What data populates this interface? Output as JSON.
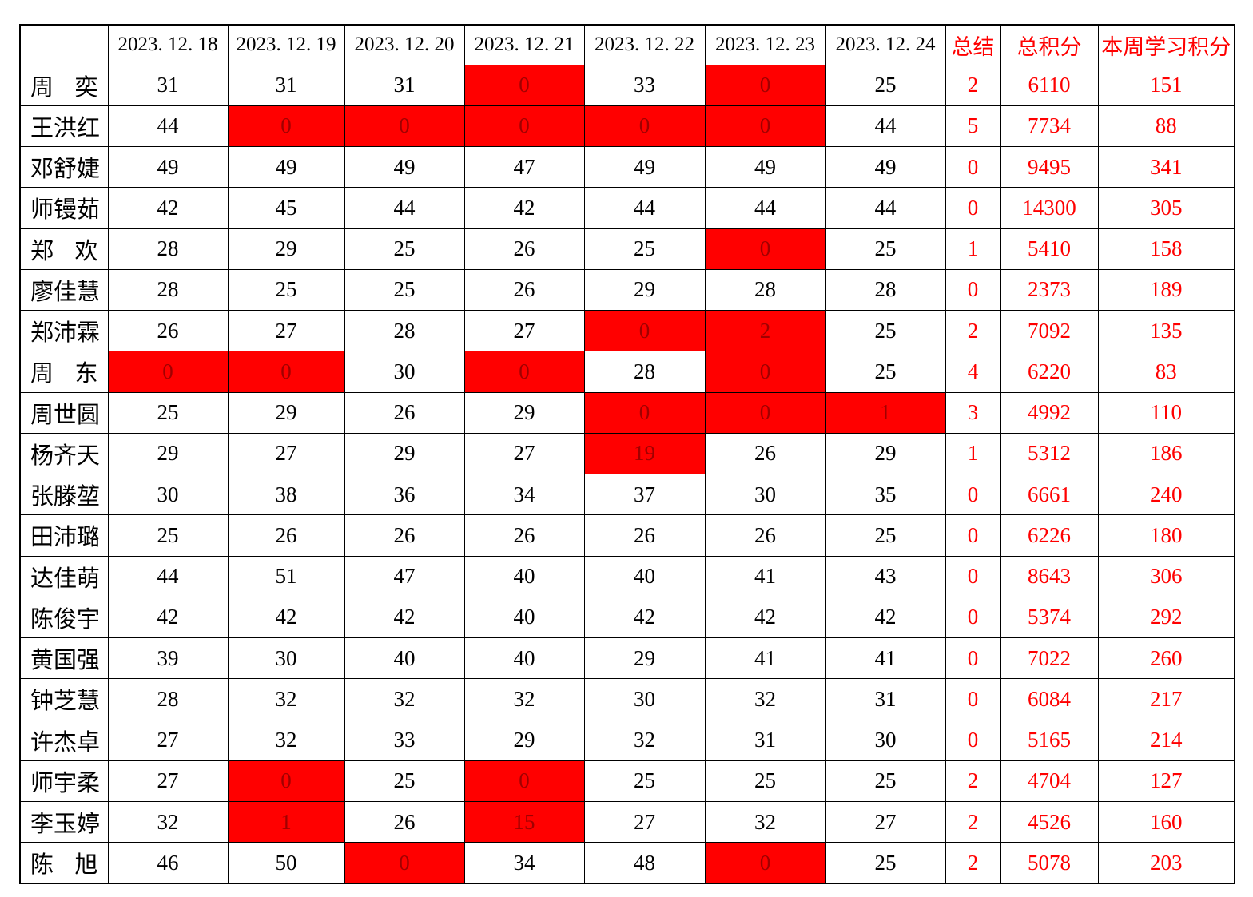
{
  "colors": {
    "grid_line": "#000000",
    "highlight_fill": "#ff0000",
    "highlight_text": "#a00000",
    "accent_text": "#ff0000",
    "normal_text": "#000000",
    "background": "#ffffff"
  },
  "table": {
    "columns": {
      "name_header": "",
      "dates": [
        "2023. 12. 18",
        "2023. 12. 19",
        "2023. 12. 20",
        "2023. 12. 21",
        "2023. 12. 22",
        "2023. 12. 23",
        "2023. 12. 24"
      ],
      "summary": "总结",
      "total": "总积分",
      "week": "本周学习积分"
    },
    "rows": [
      {
        "name": "周奕",
        "days": [
          {
            "v": "31",
            "hl": false
          },
          {
            "v": "31",
            "hl": false
          },
          {
            "v": "31",
            "hl": false
          },
          {
            "v": "0",
            "hl": true
          },
          {
            "v": "33",
            "hl": false
          },
          {
            "v": "0",
            "hl": true
          },
          {
            "v": "25",
            "hl": false
          }
        ],
        "summary": "2",
        "total": "6110",
        "week": "151"
      },
      {
        "name": "王洪红",
        "days": [
          {
            "v": "44",
            "hl": false
          },
          {
            "v": "0",
            "hl": true
          },
          {
            "v": "0",
            "hl": true
          },
          {
            "v": "0",
            "hl": true
          },
          {
            "v": "0",
            "hl": true
          },
          {
            "v": "0",
            "hl": true
          },
          {
            "v": "44",
            "hl": false
          }
        ],
        "summary": "5",
        "total": "7734",
        "week": "88"
      },
      {
        "name": "邓舒婕",
        "days": [
          {
            "v": "49",
            "hl": false
          },
          {
            "v": "49",
            "hl": false
          },
          {
            "v": "49",
            "hl": false
          },
          {
            "v": "47",
            "hl": false
          },
          {
            "v": "49",
            "hl": false
          },
          {
            "v": "49",
            "hl": false
          },
          {
            "v": "49",
            "hl": false
          }
        ],
        "summary": "0",
        "total": "9495",
        "week": "341"
      },
      {
        "name": "师镘茹",
        "days": [
          {
            "v": "42",
            "hl": false
          },
          {
            "v": "45",
            "hl": false
          },
          {
            "v": "44",
            "hl": false
          },
          {
            "v": "42",
            "hl": false
          },
          {
            "v": "44",
            "hl": false
          },
          {
            "v": "44",
            "hl": false
          },
          {
            "v": "44",
            "hl": false
          }
        ],
        "summary": "0",
        "total": "14300",
        "week": "305"
      },
      {
        "name": "郑欢",
        "days": [
          {
            "v": "28",
            "hl": false
          },
          {
            "v": "29",
            "hl": false
          },
          {
            "v": "25",
            "hl": false
          },
          {
            "v": "26",
            "hl": false
          },
          {
            "v": "25",
            "hl": false
          },
          {
            "v": "0",
            "hl": true
          },
          {
            "v": "25",
            "hl": false
          }
        ],
        "summary": "1",
        "total": "5410",
        "week": "158"
      },
      {
        "name": "廖佳慧",
        "days": [
          {
            "v": "28",
            "hl": false
          },
          {
            "v": "25",
            "hl": false
          },
          {
            "v": "25",
            "hl": false
          },
          {
            "v": "26",
            "hl": false
          },
          {
            "v": "29",
            "hl": false
          },
          {
            "v": "28",
            "hl": false
          },
          {
            "v": "28",
            "hl": false
          }
        ],
        "summary": "0",
        "total": "2373",
        "week": "189"
      },
      {
        "name": "郑沛霖",
        "days": [
          {
            "v": "26",
            "hl": false
          },
          {
            "v": "27",
            "hl": false
          },
          {
            "v": "28",
            "hl": false
          },
          {
            "v": "27",
            "hl": false
          },
          {
            "v": "0",
            "hl": true
          },
          {
            "v": "2",
            "hl": true
          },
          {
            "v": "25",
            "hl": false
          }
        ],
        "summary": "2",
        "total": "7092",
        "week": "135"
      },
      {
        "name": "周东",
        "days": [
          {
            "v": "0",
            "hl": true
          },
          {
            "v": "0",
            "hl": true
          },
          {
            "v": "30",
            "hl": false
          },
          {
            "v": "0",
            "hl": true
          },
          {
            "v": "28",
            "hl": false
          },
          {
            "v": "0",
            "hl": true
          },
          {
            "v": "25",
            "hl": false
          }
        ],
        "summary": "4",
        "total": "6220",
        "week": "83"
      },
      {
        "name": "周世圆",
        "days": [
          {
            "v": "25",
            "hl": false
          },
          {
            "v": "29",
            "hl": false
          },
          {
            "v": "26",
            "hl": false
          },
          {
            "v": "29",
            "hl": false
          },
          {
            "v": "0",
            "hl": true
          },
          {
            "v": "0",
            "hl": true
          },
          {
            "v": "1",
            "hl": true
          }
        ],
        "summary": "3",
        "total": "4992",
        "week": "110"
      },
      {
        "name": "杨齐天",
        "days": [
          {
            "v": "29",
            "hl": false
          },
          {
            "v": "27",
            "hl": false
          },
          {
            "v": "29",
            "hl": false
          },
          {
            "v": "27",
            "hl": false
          },
          {
            "v": "19",
            "hl": true
          },
          {
            "v": "26",
            "hl": false
          },
          {
            "v": "29",
            "hl": false
          }
        ],
        "summary": "1",
        "total": "5312",
        "week": "186"
      },
      {
        "name": "张滕堃",
        "days": [
          {
            "v": "30",
            "hl": false
          },
          {
            "v": "38",
            "hl": false
          },
          {
            "v": "36",
            "hl": false
          },
          {
            "v": "34",
            "hl": false
          },
          {
            "v": "37",
            "hl": false
          },
          {
            "v": "30",
            "hl": false
          },
          {
            "v": "35",
            "hl": false
          }
        ],
        "summary": "0",
        "total": "6661",
        "week": "240"
      },
      {
        "name": "田沛璐",
        "days": [
          {
            "v": "25",
            "hl": false
          },
          {
            "v": "26",
            "hl": false
          },
          {
            "v": "26",
            "hl": false
          },
          {
            "v": "26",
            "hl": false
          },
          {
            "v": "26",
            "hl": false
          },
          {
            "v": "26",
            "hl": false
          },
          {
            "v": "25",
            "hl": false
          }
        ],
        "summary": "0",
        "total": "6226",
        "week": "180"
      },
      {
        "name": "达佳萌",
        "days": [
          {
            "v": "44",
            "hl": false
          },
          {
            "v": "51",
            "hl": false
          },
          {
            "v": "47",
            "hl": false
          },
          {
            "v": "40",
            "hl": false
          },
          {
            "v": "40",
            "hl": false
          },
          {
            "v": "41",
            "hl": false
          },
          {
            "v": "43",
            "hl": false
          }
        ],
        "summary": "0",
        "total": "8643",
        "week": "306"
      },
      {
        "name": "陈俊宇",
        "days": [
          {
            "v": "42",
            "hl": false
          },
          {
            "v": "42",
            "hl": false
          },
          {
            "v": "42",
            "hl": false
          },
          {
            "v": "40",
            "hl": false
          },
          {
            "v": "42",
            "hl": false
          },
          {
            "v": "42",
            "hl": false
          },
          {
            "v": "42",
            "hl": false
          }
        ],
        "summary": "0",
        "total": "5374",
        "week": "292"
      },
      {
        "name": "黄国强",
        "days": [
          {
            "v": "39",
            "hl": false
          },
          {
            "v": "30",
            "hl": false
          },
          {
            "v": "40",
            "hl": false
          },
          {
            "v": "40",
            "hl": false
          },
          {
            "v": "29",
            "hl": false
          },
          {
            "v": "41",
            "hl": false
          },
          {
            "v": "41",
            "hl": false
          }
        ],
        "summary": "0",
        "total": "7022",
        "week": "260"
      },
      {
        "name": "钟芝慧",
        "days": [
          {
            "v": "28",
            "hl": false
          },
          {
            "v": "32",
            "hl": false
          },
          {
            "v": "32",
            "hl": false
          },
          {
            "v": "32",
            "hl": false
          },
          {
            "v": "30",
            "hl": false
          },
          {
            "v": "32",
            "hl": false
          },
          {
            "v": "31",
            "hl": false
          }
        ],
        "summary": "0",
        "total": "6084",
        "week": "217"
      },
      {
        "name": "许杰卓",
        "days": [
          {
            "v": "27",
            "hl": false
          },
          {
            "v": "32",
            "hl": false
          },
          {
            "v": "33",
            "hl": false
          },
          {
            "v": "29",
            "hl": false
          },
          {
            "v": "32",
            "hl": false
          },
          {
            "v": "31",
            "hl": false
          },
          {
            "v": "30",
            "hl": false
          }
        ],
        "summary": "0",
        "total": "5165",
        "week": "214"
      },
      {
        "name": "师宇柔",
        "days": [
          {
            "v": "27",
            "hl": false
          },
          {
            "v": "0",
            "hl": true
          },
          {
            "v": "25",
            "hl": false
          },
          {
            "v": "0",
            "hl": true
          },
          {
            "v": "25",
            "hl": false
          },
          {
            "v": "25",
            "hl": false
          },
          {
            "v": "25",
            "hl": false
          }
        ],
        "summary": "2",
        "total": "4704",
        "week": "127"
      },
      {
        "name": "李玉婷",
        "days": [
          {
            "v": "32",
            "hl": false
          },
          {
            "v": "1",
            "hl": true
          },
          {
            "v": "26",
            "hl": false
          },
          {
            "v": "15",
            "hl": true
          },
          {
            "v": "27",
            "hl": false
          },
          {
            "v": "32",
            "hl": false
          },
          {
            "v": "27",
            "hl": false
          }
        ],
        "summary": "2",
        "total": "4526",
        "week": "160"
      },
      {
        "name": "陈旭",
        "days": [
          {
            "v": "46",
            "hl": false
          },
          {
            "v": "50",
            "hl": false
          },
          {
            "v": "0",
            "hl": true
          },
          {
            "v": "34",
            "hl": false
          },
          {
            "v": "48",
            "hl": false
          },
          {
            "v": "0",
            "hl": true
          },
          {
            "v": "25",
            "hl": false
          }
        ],
        "summary": "2",
        "total": "5078",
        "week": "203"
      }
    ]
  }
}
